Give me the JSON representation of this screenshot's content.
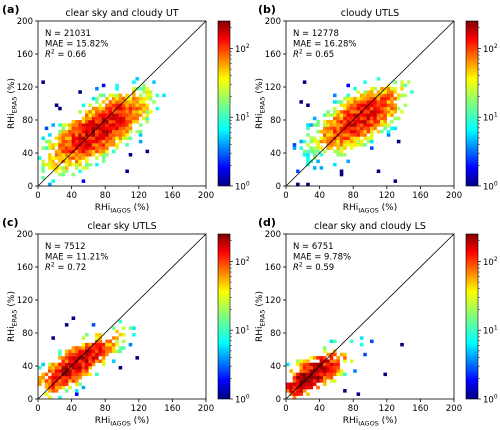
{
  "figure": {
    "colorbar": {
      "colormap": "jet",
      "scale": "log",
      "range": [
        1,
        250
      ],
      "tick_values": [
        1,
        10,
        100
      ],
      "tick_labels": [
        "10",
        "10",
        "10"
      ],
      "tick_exponents": [
        "0",
        "1",
        "2"
      ]
    }
  },
  "chart_data": [
    {
      "type": "heatmap",
      "panel_label": "(a)",
      "title": "clear sky and cloudy UT",
      "xlabel": "RHi",
      "xlabel_sub": "IAGOS",
      "xlabel_unit": " (%)",
      "ylabel": "RHi",
      "ylabel_sub": "ERA5",
      "ylabel_unit": " (%)",
      "xlim": [
        0,
        200
      ],
      "ylim": [
        0,
        200
      ],
      "xticks": [
        "0",
        "40",
        "80",
        "120",
        "160",
        "200"
      ],
      "yticks": [
        "0",
        "40",
        "80",
        "120",
        "160",
        "200"
      ],
      "stats": [
        "N = 21031",
        "MAE = 15.82%"
      ],
      "r2_label": "R",
      "r2_sup": "2",
      "r2_value": " = 0.66",
      "reference_line": "1:1",
      "density": {
        "center": [
          72,
          68
        ],
        "spread": [
          33,
          26
        ],
        "corr": 0.72,
        "xmax": 150,
        "ymax": 142,
        "peak": 160,
        "fill": 0.82
      }
    },
    {
      "type": "heatmap",
      "panel_label": "(b)",
      "title": "cloudy UTLS",
      "xlabel": "RHi",
      "xlabel_sub": "IAGOS",
      "xlabel_unit": " (%)",
      "ylabel": "RHi",
      "ylabel_sub": "ERA5",
      "ylabel_unit": " (%)",
      "xlim": [
        0,
        200
      ],
      "ylim": [
        0,
        200
      ],
      "xticks": [
        "0",
        "40",
        "80",
        "120",
        "160",
        "200"
      ],
      "yticks": [
        "0",
        "40",
        "80",
        "120",
        "160",
        "200"
      ],
      "stats": [
        "N = 12778",
        "MAE = 16.28%"
      ],
      "r2_label": "R",
      "r2_sup": "2",
      "r2_value": " = 0.65",
      "reference_line": "1:1",
      "density": {
        "center": [
          88,
          82
        ],
        "spread": [
          30,
          23
        ],
        "corr": 0.68,
        "xmax": 150,
        "ymax": 140,
        "peak": 140,
        "fill": 0.76
      }
    },
    {
      "type": "heatmap",
      "panel_label": "(c)",
      "title": "clear sky UTLS",
      "xlabel": "RHi",
      "xlabel_sub": "IAGOS",
      "xlabel_unit": " (%)",
      "ylabel": "RHi",
      "ylabel_sub": "ERA5",
      "ylabel_unit": " (%)",
      "xlim": [
        0,
        200
      ],
      "ylim": [
        0,
        200
      ],
      "xticks": [
        "0",
        "40",
        "80",
        "120",
        "160",
        "200"
      ],
      "yticks": [
        "0",
        "40",
        "80",
        "120",
        "160",
        "200"
      ],
      "stats": [
        "N = 7512",
        "MAE = 11.21%"
      ],
      "r2_label": "R",
      "r2_sup": "2",
      "r2_value": " = 0.72",
      "reference_line": "1:1",
      "density": {
        "center": [
          45,
          42
        ],
        "spread": [
          28,
          22
        ],
        "corr": 0.82,
        "xmax": 132,
        "ymax": 108,
        "peak": 180,
        "fill": 0.6
      }
    },
    {
      "type": "heatmap",
      "panel_label": "(d)",
      "title": "clear sky and cloudy LS",
      "xlabel": "RHi",
      "xlabel_sub": "IAGOS",
      "xlabel_unit": " (%)",
      "ylabel": "RHi",
      "ylabel_sub": "ERA5",
      "ylabel_unit": " (%)",
      "xlim": [
        0,
        200
      ],
      "ylim": [
        0,
        200
      ],
      "xticks": [
        "0",
        "40",
        "80",
        "120",
        "160",
        "200"
      ],
      "yticks": [
        "0",
        "40",
        "80",
        "120",
        "160",
        "200"
      ],
      "stats": [
        "N = 6751",
        "MAE = 9.78%"
      ],
      "r2_label": "R",
      "r2_sup": "2",
      "r2_value": " = 0.59",
      "reference_line": "1:1",
      "density": {
        "center": [
          30,
          28
        ],
        "spread": [
          24,
          18
        ],
        "corr": 0.74,
        "xmax": 150,
        "ymax": 102,
        "peak": 220,
        "fill": 0.45
      }
    }
  ]
}
